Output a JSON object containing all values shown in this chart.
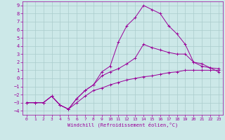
{
  "xlabel": "Windchill (Refroidissement éolien,°C)",
  "background_color": "#cce8e8",
  "grid_color": "#aacccc",
  "line_color": "#990099",
  "xlim": [
    -0.5,
    23.5
  ],
  "ylim": [
    -4.5,
    9.5
  ],
  "xticks": [
    0,
    1,
    2,
    3,
    4,
    5,
    6,
    7,
    8,
    9,
    10,
    11,
    12,
    13,
    14,
    15,
    16,
    17,
    18,
    19,
    20,
    21,
    22,
    23
  ],
  "yticks": [
    -4,
    -3,
    -2,
    -1,
    0,
    1,
    2,
    3,
    4,
    5,
    6,
    7,
    8,
    9
  ],
  "curve1_x": [
    0,
    1,
    2,
    3,
    4,
    5,
    6,
    7,
    8,
    9,
    10,
    11,
    12,
    13,
    14,
    15,
    16,
    17,
    18,
    19,
    20,
    21,
    22,
    23
  ],
  "curve1_y": [
    -3,
    -3,
    -3,
    -2.2,
    -3.3,
    -3.8,
    -3,
    -2.2,
    -1.5,
    -1.2,
    -0.8,
    -0.5,
    -0.2,
    0,
    0.2,
    0.3,
    0.5,
    0.7,
    0.8,
    1.0,
    1.0,
    1.0,
    1.0,
    1.0
  ],
  "curve2_x": [
    0,
    1,
    2,
    3,
    4,
    5,
    6,
    7,
    8,
    9,
    10,
    11,
    12,
    13,
    14,
    15,
    16,
    17,
    18,
    19,
    20,
    21,
    22,
    23
  ],
  "curve2_y": [
    -3,
    -3,
    -3,
    -2.2,
    -3.3,
    -3.8,
    -2.5,
    -1.5,
    -0.8,
    0.3,
    0.8,
    1.2,
    1.8,
    2.5,
    4.2,
    3.8,
    3.5,
    3.2,
    3.0,
    3.0,
    2.0,
    1.5,
    1.3,
    1.2
  ],
  "curve3_x": [
    0,
    1,
    2,
    3,
    4,
    5,
    6,
    7,
    8,
    9,
    10,
    11,
    12,
    13,
    14,
    15,
    16,
    17,
    18,
    19,
    20,
    21,
    22,
    23
  ],
  "curve3_y": [
    -3,
    -3,
    -3,
    -2.2,
    -3.3,
    -3.8,
    -2.5,
    -1.5,
    -0.8,
    0.8,
    1.5,
    4.5,
    6.5,
    7.5,
    9,
    8.5,
    8,
    6.5,
    5.5,
    4.2,
    2.0,
    1.8,
    1.3,
    0.8
  ]
}
